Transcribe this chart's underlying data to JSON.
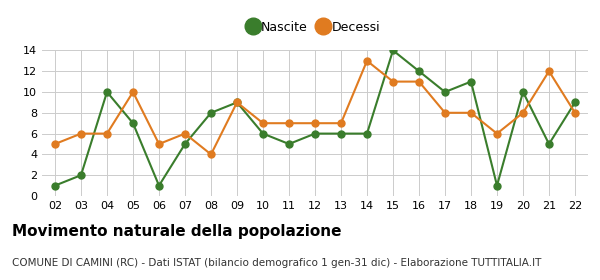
{
  "years": [
    2,
    3,
    4,
    5,
    6,
    7,
    8,
    9,
    10,
    11,
    12,
    13,
    14,
    15,
    16,
    17,
    18,
    19,
    20,
    21,
    22
  ],
  "nascite": [
    1,
    2,
    10,
    7,
    1,
    5,
    8,
    9,
    6,
    5,
    6,
    6,
    6,
    14,
    12,
    10,
    11,
    1,
    10,
    5,
    9
  ],
  "decessi": [
    5,
    6,
    6,
    10,
    5,
    6,
    4,
    9,
    7,
    7,
    7,
    7,
    13,
    11,
    11,
    8,
    8,
    6,
    8,
    12,
    8
  ],
  "nascite_color": "#3a7d2c",
  "decessi_color": "#e07b20",
  "title": "Movimento naturale della popolazione",
  "subtitle": "COMUNE DI CAMINI (RC) - Dati ISTAT (bilancio demografico 1 gen-31 dic) - Elaborazione TUTTITALIA.IT",
  "ylim": [
    0,
    14
  ],
  "yticks": [
    0,
    2,
    4,
    6,
    8,
    10,
    12,
    14
  ],
  "legend_nascite": "Nascite",
  "legend_decessi": "Decessi",
  "background_color": "#ffffff",
  "grid_color": "#cccccc",
  "marker_size": 5,
  "legend_marker_size": 12,
  "line_width": 1.5,
  "title_fontsize": 11,
  "subtitle_fontsize": 7.5,
  "tick_fontsize": 8,
  "legend_fontsize": 9
}
